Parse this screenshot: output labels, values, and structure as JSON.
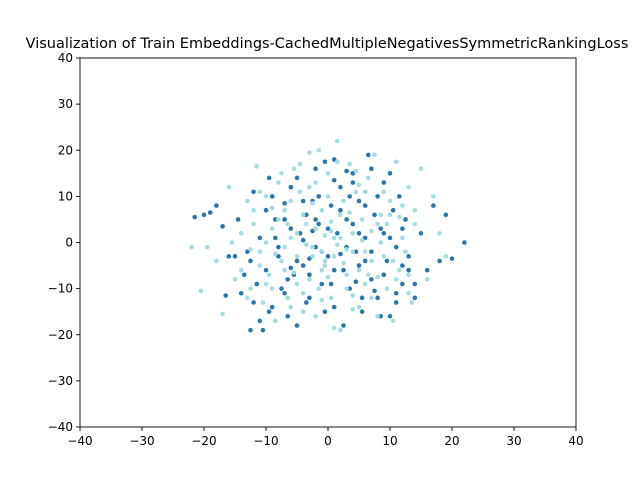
{
  "chart_data": {
    "type": "scatter",
    "title": "Visualization of Train Embeddings-CachedMultipleNegativesSymmetricRankingLoss",
    "xlabel": "",
    "ylabel": "",
    "xlim": [
      -40,
      40
    ],
    "ylim": [
      -40,
      40
    ],
    "xticks": [
      -40,
      -30,
      -20,
      -10,
      0,
      10,
      20,
      30,
      40
    ],
    "yticks": [
      -40,
      -30,
      -20,
      -10,
      0,
      10,
      20,
      30,
      40
    ],
    "grid": false,
    "legend": "none",
    "point_radius_px": 2.3,
    "colors": {
      "dark": "#1f6fa8",
      "light": "#9fd9e3"
    },
    "series": [
      {
        "color_key": "dark",
        "points": [
          [
            -21.5,
            5.5
          ],
          [
            -20,
            6
          ],
          [
            -19,
            6.5
          ],
          [
            -18,
            8
          ],
          [
            -17,
            3.5
          ],
          [
            -16.5,
            -11.5
          ],
          [
            -15,
            -3
          ],
          [
            -14,
            -11
          ],
          [
            -13,
            -2
          ],
          [
            -12.5,
            -19
          ],
          [
            -12,
            11
          ],
          [
            -11.5,
            -9
          ],
          [
            -11,
            -17
          ],
          [
            -10.5,
            -19
          ],
          [
            -10,
            7
          ],
          [
            -9.5,
            14
          ],
          [
            -9,
            -14
          ],
          [
            -8.5,
            1
          ],
          [
            -8,
            -3
          ],
          [
            -7.5,
            -10
          ],
          [
            -7,
            5
          ],
          [
            -6.5,
            -16
          ],
          [
            -6,
            12
          ],
          [
            -5.5,
            -7
          ],
          [
            -5,
            -18
          ],
          [
            -4.5,
            2
          ],
          [
            -4,
            -5
          ],
          [
            -3.5,
            6
          ],
          [
            -3,
            -12
          ],
          [
            -2.5,
            9
          ],
          [
            -2,
            -1
          ],
          [
            -1.5,
            4
          ],
          [
            -1,
            -9
          ],
          [
            -0.5,
            17.5
          ],
          [
            0,
            -3
          ],
          [
            0.5,
            8
          ],
          [
            1,
            -14
          ],
          [
            1.5,
            2
          ],
          [
            2,
            12
          ],
          [
            2.5,
            -6
          ],
          [
            3,
            5
          ],
          [
            3.5,
            -10
          ],
          [
            4,
            15
          ],
          [
            4.5,
            -2
          ],
          [
            5,
            9
          ],
          [
            5.5,
            -15
          ],
          [
            6,
            1
          ],
          [
            6.5,
            19
          ],
          [
            7,
            -8
          ],
          [
            7.5,
            6
          ],
          [
            8,
            -12
          ],
          [
            8.5,
            3
          ],
          [
            9,
            13
          ],
          [
            9.5,
            -4
          ],
          [
            10,
            -16
          ],
          [
            10.5,
            7
          ],
          [
            11,
            -1
          ],
          [
            11.5,
            10
          ],
          [
            12,
            -9
          ],
          [
            12.5,
            5
          ],
          [
            13,
            -3
          ],
          [
            14,
            -12
          ],
          [
            15,
            2
          ],
          [
            16,
            -6
          ],
          [
            17,
            8
          ],
          [
            18,
            -4
          ],
          [
            19,
            6
          ],
          [
            20,
            -3.5
          ],
          [
            22,
            0
          ],
          [
            -16,
            -3
          ],
          [
            -14.5,
            5
          ],
          [
            -13.5,
            -7
          ],
          [
            -12,
            -13
          ],
          [
            -11,
            1
          ],
          [
            -10,
            -6
          ],
          [
            -9,
            10
          ],
          [
            -8,
            -1
          ],
          [
            -7,
            -11
          ],
          [
            -6,
            3
          ],
          [
            -5,
            -4
          ],
          [
            -4,
            9
          ],
          [
            -3,
            -7
          ],
          [
            -2,
            5
          ],
          [
            -1,
            -2
          ],
          [
            0,
            3
          ],
          [
            1,
            -6
          ],
          [
            2,
            7
          ],
          [
            3,
            -1
          ],
          [
            4,
            4
          ],
          [
            5,
            -5
          ],
          [
            6,
            8
          ],
          [
            7,
            -2
          ],
          [
            8,
            10
          ],
          [
            9,
            -7
          ],
          [
            10,
            1
          ],
          [
            11,
            -11
          ],
          [
            12,
            3
          ],
          [
            13,
            -6
          ],
          [
            14,
            -9
          ],
          [
            -6.5,
            -8
          ],
          [
            -3.5,
            -13
          ],
          [
            -0.5,
            -15
          ],
          [
            2.5,
            -18
          ],
          [
            5.5,
            -12
          ],
          [
            8.5,
            -16
          ],
          [
            -5,
            14
          ],
          [
            -2,
            16
          ],
          [
            1,
            18
          ],
          [
            4,
            13
          ],
          [
            7,
            16
          ],
          [
            10,
            15
          ],
          [
            -1.5,
            10
          ],
          [
            3.5,
            10
          ],
          [
            -4,
            0.5
          ],
          [
            6,
            -4
          ],
          [
            0.5,
            -9
          ],
          [
            -8.5,
            5
          ],
          [
            9,
            2
          ],
          [
            -3,
            -3.5
          ],
          [
            2,
            -2.5
          ],
          [
            4.5,
            -8.5
          ],
          [
            -6,
            -5.5
          ],
          [
            7.5,
            -10.5
          ],
          [
            1,
            13.5
          ],
          [
            -9.5,
            -15
          ],
          [
            11,
            -13
          ],
          [
            -12.5,
            -4
          ],
          [
            12,
            -5
          ],
          [
            -2.5,
            2.5
          ],
          [
            5,
            2
          ],
          [
            -7,
            8.5
          ],
          [
            3,
            15.5
          ]
        ]
      },
      {
        "color_key": "light",
        "points": [
          [
            -22,
            -1
          ],
          [
            -20.5,
            -10.5
          ],
          [
            -19.5,
            -1
          ],
          [
            -18,
            -4
          ],
          [
            -17,
            -15.5
          ],
          [
            -16,
            12
          ],
          [
            -15.5,
            0
          ],
          [
            -14,
            -6
          ],
          [
            -13,
            9
          ],
          [
            -12.5,
            -10
          ],
          [
            -12,
            4
          ],
          [
            -11.5,
            16.5
          ],
          [
            -11,
            -2
          ],
          [
            -10.5,
            -13
          ],
          [
            -10,
            10
          ],
          [
            -9.5,
            -7
          ],
          [
            -9,
            3
          ],
          [
            -8.5,
            -17
          ],
          [
            -8,
            13
          ],
          [
            -7.5,
            -4
          ],
          [
            -7,
            7
          ],
          [
            -6.5,
            -12
          ],
          [
            -6,
            1
          ],
          [
            -5.5,
            16
          ],
          [
            -5,
            -9
          ],
          [
            -4.5,
            11
          ],
          [
            -4,
            -15
          ],
          [
            -3.5,
            4
          ],
          [
            -3,
            19.5
          ],
          [
            -2.5,
            -3
          ],
          [
            -2,
            13
          ],
          [
            -1.5,
            -10
          ],
          [
            -1,
            7
          ],
          [
            -0.5,
            -5
          ],
          [
            0,
            15
          ],
          [
            0.5,
            -12
          ],
          [
            1,
            1
          ],
          [
            1.5,
            22
          ],
          [
            2,
            -19
          ],
          [
            2.5,
            9
          ],
          [
            3,
            -7
          ],
          [
            3.5,
            17
          ],
          [
            4,
            -2
          ],
          [
            4.5,
            11
          ],
          [
            5,
            -14
          ],
          [
            5.5,
            5
          ],
          [
            6,
            -9
          ],
          [
            6.5,
            14
          ],
          [
            7,
            -4
          ],
          [
            7.5,
            19
          ],
          [
            8,
            -16
          ],
          [
            8.5,
            0
          ],
          [
            9,
            11
          ],
          [
            9.5,
            -10
          ],
          [
            10,
            6
          ],
          [
            10.5,
            -17
          ],
          [
            11,
            17.5
          ],
          [
            11.5,
            -6
          ],
          [
            12,
            8
          ],
          [
            12.5,
            -2
          ],
          [
            13,
            12
          ],
          [
            13.5,
            -13
          ],
          [
            14,
            4
          ],
          [
            15,
            16
          ],
          [
            16,
            -8
          ],
          [
            17,
            10
          ],
          [
            18,
            2
          ],
          [
            19,
            -3
          ],
          [
            -15,
            -8
          ],
          [
            -14,
            2
          ],
          [
            -13,
            -12
          ],
          [
            -12,
            7
          ],
          [
            -11,
            -5
          ],
          [
            -10,
            0
          ],
          [
            -9,
            -10
          ],
          [
            -8,
            5
          ],
          [
            -7,
            -1
          ],
          [
            -6,
            9
          ],
          [
            -5,
            -3
          ],
          [
            -4,
            6
          ],
          [
            -3,
            -8
          ],
          [
            -2,
            3
          ],
          [
            -1,
            -6
          ],
          [
            0,
            10
          ],
          [
            1,
            -3
          ],
          [
            2,
            6
          ],
          [
            3,
            -10
          ],
          [
            4,
            2
          ],
          [
            5,
            -6
          ],
          [
            6,
            11
          ],
          [
            7,
            -12
          ],
          [
            8,
            4
          ],
          [
            9,
            -3
          ],
          [
            10,
            9
          ],
          [
            11,
            -8
          ],
          [
            12,
            1
          ],
          [
            13,
            -11
          ],
          [
            14,
            7
          ],
          [
            -7.5,
            15
          ],
          [
            -4.5,
            17
          ],
          [
            -1.5,
            20
          ],
          [
            1.5,
            17.5
          ],
          [
            4.5,
            15.5
          ],
          [
            -2,
            -16
          ],
          [
            1,
            -18.5
          ],
          [
            4,
            -14.5
          ],
          [
            -6,
            -14
          ],
          [
            -1,
            -12.5
          ],
          [
            3,
            -1.5
          ],
          [
            -3.5,
            -0.5
          ],
          [
            5.5,
            0.5
          ],
          [
            -8.5,
            -2.5
          ],
          [
            0.5,
            4.5
          ],
          [
            -5.5,
            -6.5
          ],
          [
            7,
            2.5
          ],
          [
            2.5,
            -4.5
          ],
          [
            -2.5,
            8.5
          ],
          [
            6.5,
            -7
          ],
          [
            -9,
            7.5
          ],
          [
            9.5,
            4
          ],
          [
            -4,
            -11
          ],
          [
            8,
            -7.5
          ],
          [
            -11,
            11
          ],
          [
            10.5,
            -4
          ],
          [
            -0.5,
            1.5
          ],
          [
            3.5,
            6.5
          ],
          [
            -6.5,
            4
          ],
          [
            0,
            -7.5
          ],
          [
            4,
            -11.5
          ],
          [
            -3,
            12
          ],
          [
            5,
            12.5
          ],
          [
            -10,
            -9
          ],
          [
            11.5,
            5.5
          ],
          [
            -12.5,
            -1.5
          ],
          [
            13,
            -7
          ],
          [
            -1,
            -2
          ],
          [
            1.5,
            -0.5
          ],
          [
            2,
            1
          ],
          [
            -0.5,
            -4
          ],
          [
            -2.5,
            -1
          ],
          [
            0.5,
            2.5
          ],
          [
            6,
            -2
          ],
          [
            -5,
            2
          ],
          [
            -7,
            -6
          ],
          [
            8.5,
            6
          ]
        ]
      }
    ]
  }
}
